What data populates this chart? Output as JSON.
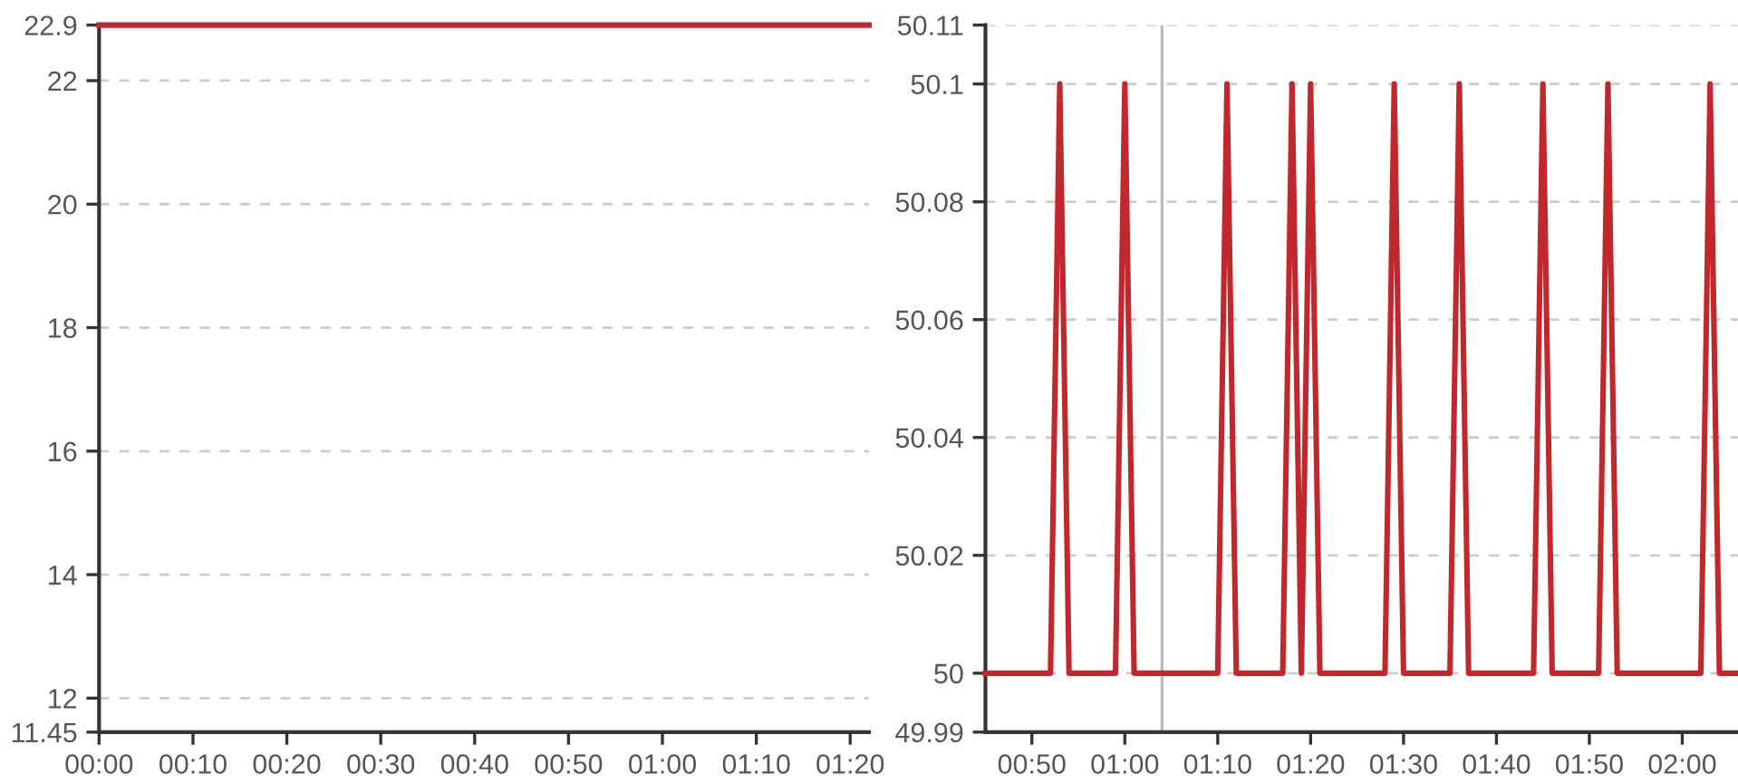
{
  "chart_data": [
    {
      "type": "line",
      "x": [
        0,
        1.3667
      ],
      "series": [
        {
          "color": "#c0282d",
          "values": [
            22.9,
            22.9
          ]
        }
      ],
      "xlim": [
        0,
        1.3667
      ],
      "xticks": [
        {
          "value": 0,
          "label": "00:00"
        },
        {
          "value": 0.1667,
          "label": "00:10"
        },
        {
          "value": 0.3333,
          "label": "00:20"
        },
        {
          "value": 0.5,
          "label": "00:30"
        },
        {
          "value": 0.6667,
          "label": "00:40"
        },
        {
          "value": 0.8333,
          "label": "00:50"
        },
        {
          "value": 1,
          "label": "01:00"
        },
        {
          "value": 1.1667,
          "label": "01:10"
        },
        {
          "value": 1.3333,
          "label": "01:20"
        }
      ],
      "ylim": [
        11.45,
        22.9
      ],
      "yticks": [
        11.45,
        12,
        14,
        16,
        18,
        20,
        22,
        22.9
      ],
      "grid": "y",
      "legend": false,
      "marker": "none",
      "line_style": "solid"
    },
    {
      "type": "line",
      "x": [
        0.75,
        0.8667,
        0.8833,
        0.9,
        0.9833,
        1.0,
        1.0167,
        1.1667,
        1.1833,
        1.2,
        1.2833,
        1.3,
        1.3167,
        1.3333,
        1.35,
        1.4667,
        1.4833,
        1.5,
        1.5833,
        1.6,
        1.6167,
        1.7333,
        1.75,
        1.7667,
        1.85,
        1.8667,
        1.8833,
        2.0333,
        2.05,
        2.0667,
        2.1
      ],
      "series": [
        {
          "color": "#c0282d",
          "values": [
            50,
            50,
            50.1,
            50,
            50,
            50.1,
            50,
            50,
            50.1,
            50,
            50,
            50.1,
            50,
            50.1,
            50,
            50,
            50.1,
            50,
            50,
            50.1,
            50,
            50,
            50.1,
            50,
            50,
            50.1,
            50,
            50,
            50.1,
            50,
            50
          ]
        }
      ],
      "xlim": [
        0.75,
        2.1
      ],
      "xticks": [
        {
          "value": 0.8333,
          "label": "00:50"
        },
        {
          "value": 1,
          "label": "01:00"
        },
        {
          "value": 1.1667,
          "label": "01:10"
        },
        {
          "value": 1.3333,
          "label": "01:20"
        },
        {
          "value": 1.5,
          "label": "01:30"
        },
        {
          "value": 1.6667,
          "label": "01:40"
        },
        {
          "value": 1.8333,
          "label": "01:50"
        },
        {
          "value": 2,
          "label": "02:00"
        }
      ],
      "ylim": [
        49.99,
        50.11
      ],
      "yticks": [
        49.99,
        50,
        50.02,
        50.04,
        50.06,
        50.08,
        50.1,
        50.11
      ],
      "ref_lines": [
        {
          "axis": "x",
          "value": 1.0667,
          "color": "#bbbbbb"
        }
      ],
      "grid": "y",
      "legend": false,
      "marker": "none",
      "line_style": "solid"
    }
  ]
}
